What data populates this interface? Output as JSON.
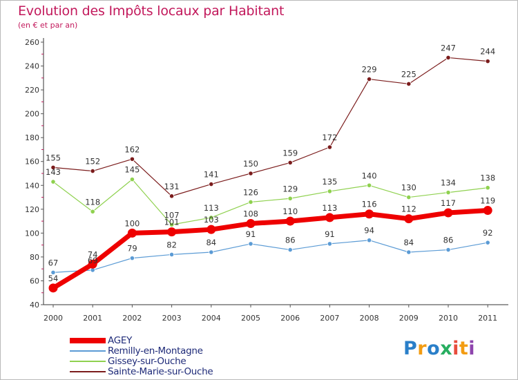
{
  "header": {
    "title": "Evolution des Impôts locaux par Habitant",
    "subtitle": "(en € et par an)"
  },
  "logo": {
    "text": "Proxiti",
    "colors": [
      "#2a7fc9",
      "#f39c12",
      "#2a7fc9",
      "#27ae60",
      "#e74c3c",
      "#f39c12",
      "#8e44ad"
    ]
  },
  "chart_data": {
    "type": "line",
    "categories": [
      "2000",
      "2001",
      "2002",
      "2003",
      "2004",
      "2005",
      "2006",
      "2007",
      "2008",
      "2009",
      "2010",
      "2011"
    ],
    "ylim": [
      40,
      260
    ],
    "yticks": [
      40,
      60,
      80,
      100,
      120,
      140,
      160,
      180,
      200,
      220,
      240,
      260
    ],
    "grid": false,
    "legend_position": "bottom-left",
    "series": [
      {
        "name": "AGEY",
        "color": "#ee0000",
        "values": [
          54,
          74,
          100,
          101,
          103,
          108,
          110,
          113,
          116,
          112,
          117,
          119
        ]
      },
      {
        "name": "Remilly-en-Montagne",
        "color": "#5b9bd5",
        "values": [
          67,
          69,
          79,
          82,
          84,
          91,
          86,
          91,
          94,
          84,
          86,
          92
        ]
      },
      {
        "name": "Gissey-sur-Ouche",
        "color": "#8fd14f",
        "values": [
          143,
          118,
          145,
          107,
          113,
          126,
          129,
          135,
          140,
          130,
          134,
          138
        ]
      },
      {
        "name": "Sainte-Marie-sur-Ouche",
        "color": "#7b1c1c",
        "values": [
          155,
          152,
          162,
          131,
          141,
          150,
          159,
          172,
          229,
          225,
          247,
          244
        ]
      }
    ]
  }
}
